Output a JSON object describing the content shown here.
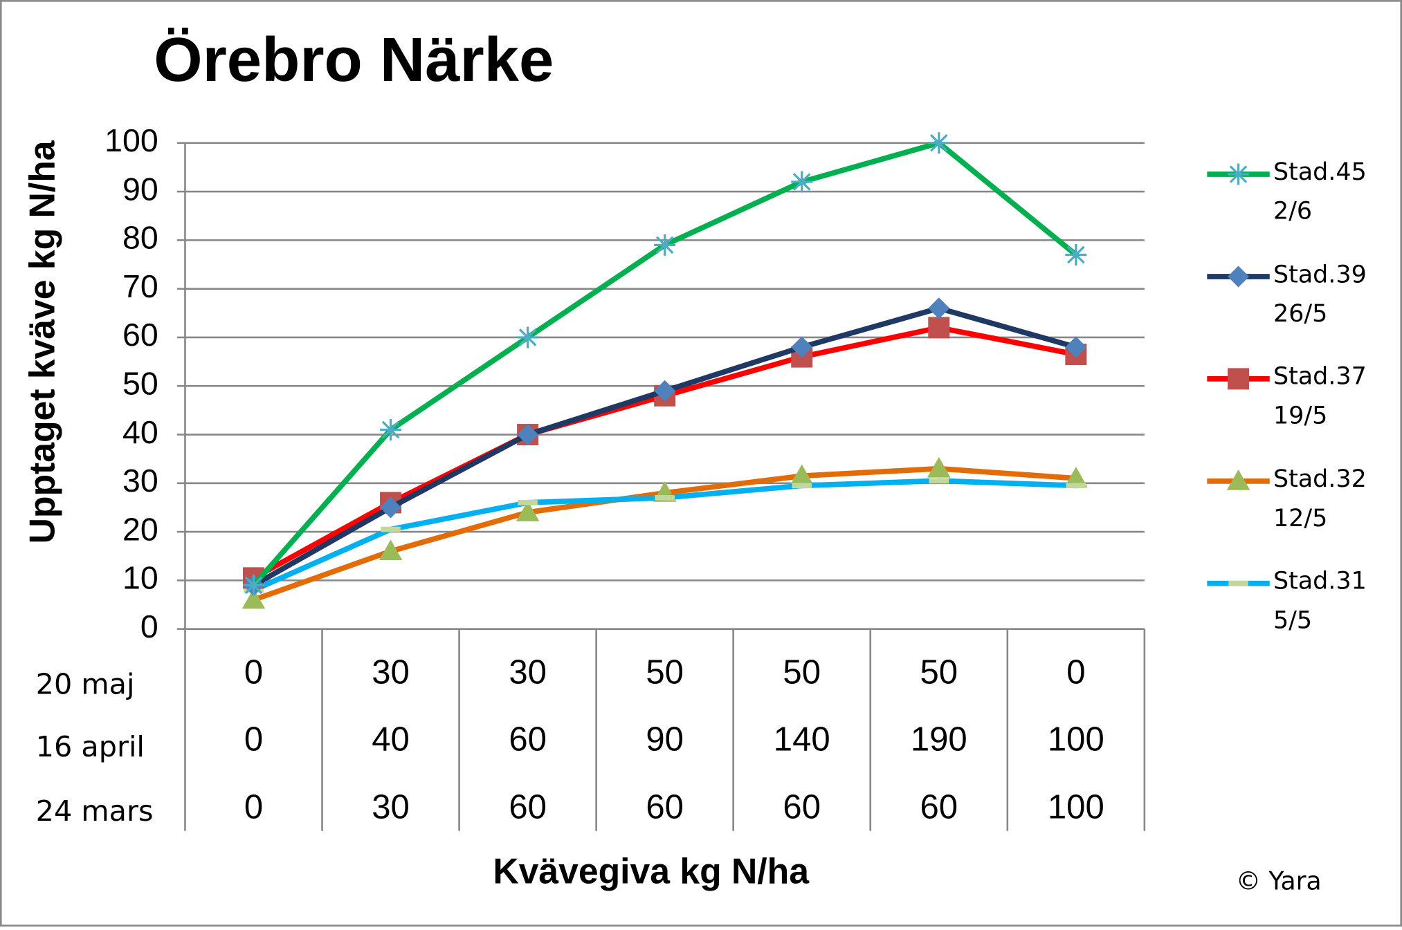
{
  "chart_data": {
    "type": "line",
    "title": "Örebro Närke",
    "y_label": "Upptaget kväve kg N/ha",
    "x_label": "Kvävegiva kg N/ha",
    "credit": "© Yara",
    "category_levels": [
      {
        "name": "20 maj",
        "labels": [
          0,
          30,
          30,
          50,
          50,
          50,
          0
        ]
      },
      {
        "name": "16 april",
        "labels": [
          0,
          40,
          60,
          90,
          140,
          190,
          100
        ]
      },
      {
        "name": "24 mars",
        "labels": [
          0,
          30,
          60,
          60,
          60,
          60,
          100
        ]
      }
    ],
    "series": [
      {
        "name": "Stad.45 2/6",
        "color": "#00b050",
        "marker": "asterisk",
        "marker_color": "#4bacc6",
        "values": [
          9,
          41,
          60,
          79,
          92,
          100,
          77
        ]
      },
      {
        "name": "Stad.39 26/5",
        "color": "#1f3864",
        "marker": "diamond",
        "marker_color": "#4f81bd",
        "values": [
          9,
          25,
          40,
          49,
          58,
          66,
          58
        ]
      },
      {
        "name": "Stad.37 19/5",
        "color": "#ff0000",
        "marker": "square",
        "marker_color": "#c0504d",
        "values": [
          10.5,
          26,
          40,
          48,
          56,
          62,
          56.5
        ]
      },
      {
        "name": "Stad.32 12/5",
        "color": "#e36c09",
        "marker": "triangle",
        "marker_color": "#9bbb59",
        "values": [
          6,
          16,
          24,
          28,
          31.5,
          33,
          31
        ]
      },
      {
        "name": "Stad.31 5/5",
        "color": "#00b0f0",
        "marker": "dash",
        "marker_color": "#c4d79b",
        "values": [
          8,
          20.5,
          26,
          27,
          29.5,
          30.5,
          29.5
        ]
      }
    ],
    "ylim": [
      0,
      100
    ],
    "yticks": [
      0,
      10,
      20,
      30,
      40,
      50,
      60,
      70,
      80,
      90,
      100
    ],
    "grid": true
  }
}
